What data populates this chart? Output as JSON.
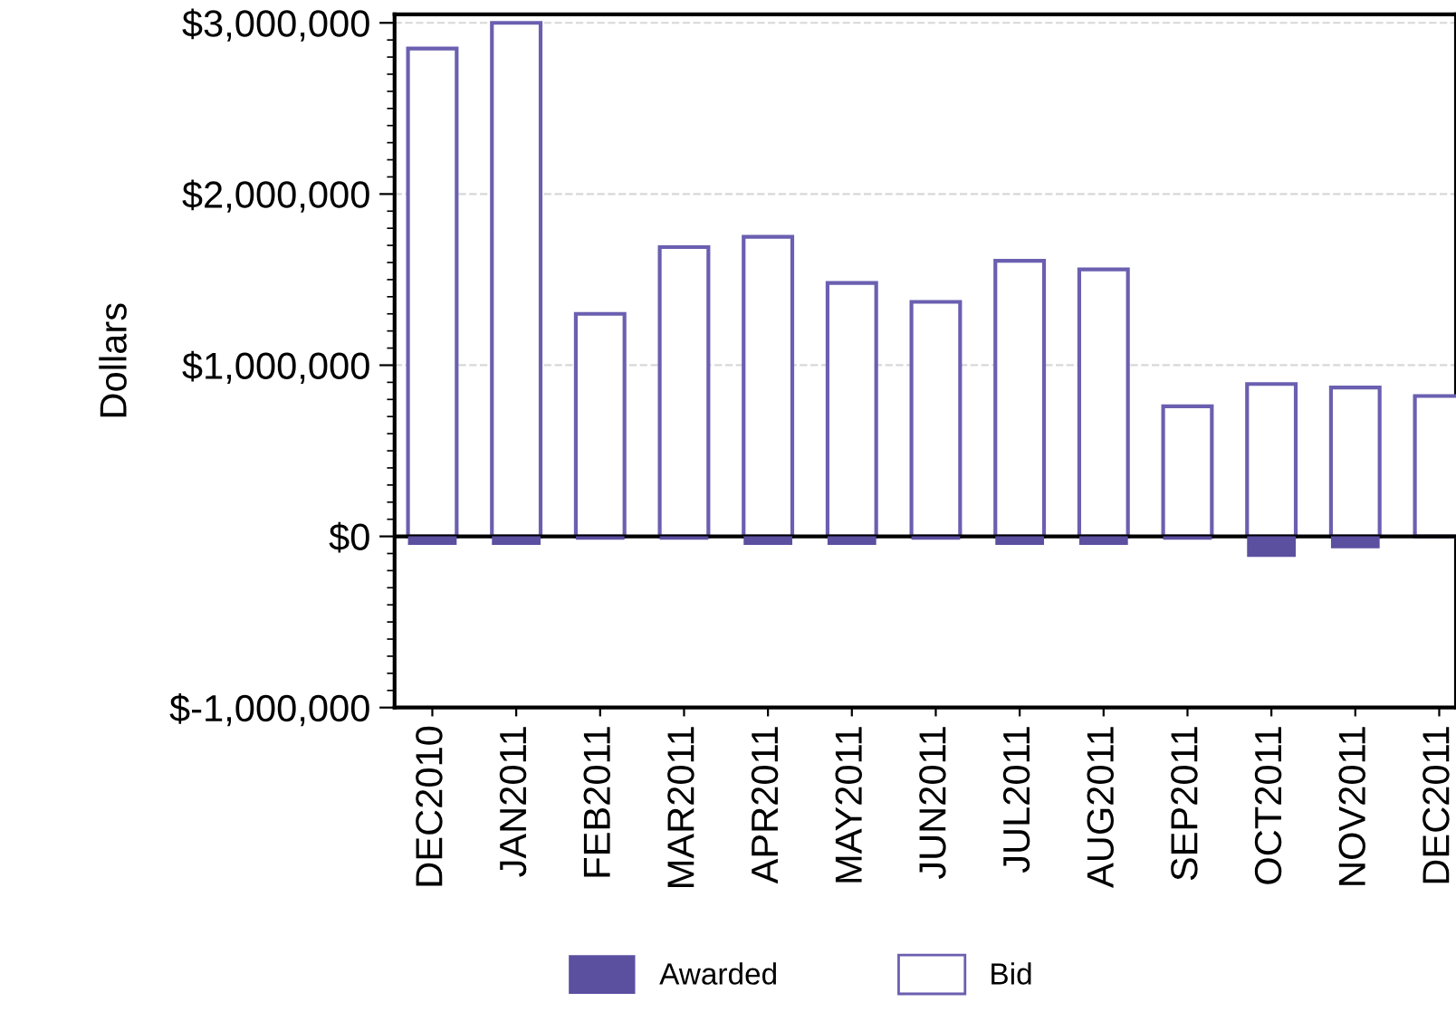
{
  "chart_data": {
    "type": "bar",
    "ylabel": "Dollars",
    "categories": [
      "DEC2010",
      "JAN2011",
      "FEB2011",
      "MAR2011",
      "APR2011",
      "MAY2011",
      "JUN2011",
      "JUL2011",
      "AUG2011",
      "SEP2011",
      "OCT2011",
      "NOV2011",
      "DEC2011"
    ],
    "series": [
      {
        "name": "Awarded",
        "color": "#5b4fa0",
        "values": [
          -50000,
          -50000,
          -20000,
          -20000,
          -50000,
          -50000,
          -20000,
          -50000,
          -50000,
          -20000,
          -120000,
          -70000,
          0
        ]
      },
      {
        "name": "Bid",
        "color": "#6a5fb0",
        "values": [
          2850000,
          3000000,
          1300000,
          1690000,
          1750000,
          1480000,
          1370000,
          1610000,
          1560000,
          760000,
          890000,
          870000,
          820000
        ]
      }
    ],
    "ylim": [
      -1000000,
      3050000
    ],
    "yticks": [
      {
        "value": -1000000,
        "label": "$-1,000,000"
      },
      {
        "value": 0,
        "label": "$0"
      },
      {
        "value": 1000000,
        "label": "$1,000,000"
      },
      {
        "value": 2000000,
        "label": "$2,000,000"
      },
      {
        "value": 3000000,
        "label": "$3,000,000"
      }
    ],
    "ref_lines": [
      {
        "axis": "y",
        "value": 0,
        "color": "#000000"
      }
    ],
    "grid": "y",
    "legend": "bottom",
    "stacked": true
  }
}
